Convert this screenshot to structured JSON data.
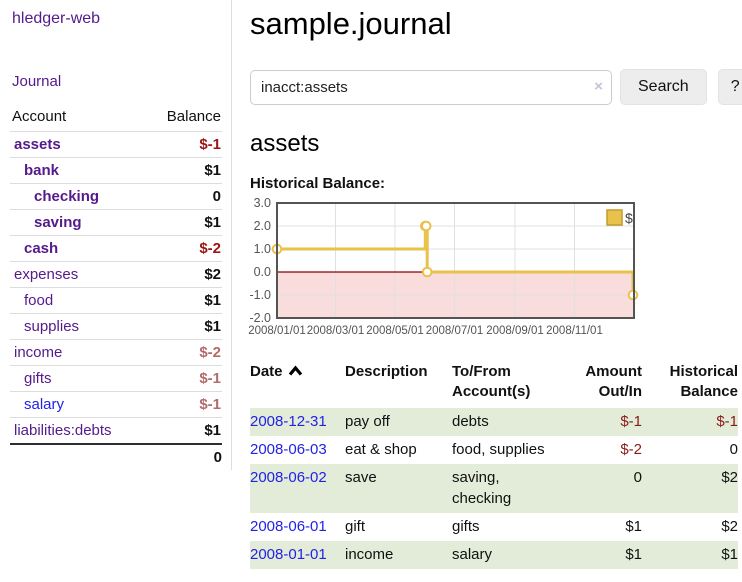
{
  "colors": {
    "accent_purple": "#551a8b",
    "link_blue": "#2222e6",
    "negative_strong": "#9d1414",
    "negative_soft": "#b36a6a",
    "negative_table": "#8b1a1a",
    "row_green": "#e3ecd9",
    "chart_line": "#e8c24a",
    "chart_negative_fill": "#f9dcdc",
    "chart_zero_line": "#8b0000"
  },
  "sidebar": {
    "app_title": "hledger-web",
    "nav_journal": "Journal",
    "accounts_table": {
      "header_account": "Account",
      "header_balance": "Balance",
      "rows": [
        {
          "name": "assets",
          "balance": "$-1",
          "indent": 0,
          "bold": true,
          "neg": "strong"
        },
        {
          "name": "bank",
          "balance": "$1",
          "indent": 1,
          "bold": true
        },
        {
          "name": "checking",
          "balance": "0",
          "indent": 2,
          "bold": true
        },
        {
          "name": "saving",
          "balance": "$1",
          "indent": 2,
          "bold": true
        },
        {
          "name": "cash",
          "balance": "$-2",
          "indent": 1,
          "bold": true,
          "neg": "strong"
        },
        {
          "name": "expenses",
          "balance": "$2",
          "indent": 0
        },
        {
          "name": "food",
          "balance": "$1",
          "indent": 1
        },
        {
          "name": "supplies",
          "balance": "$1",
          "indent": 1
        },
        {
          "name": "income",
          "balance": "$-2",
          "indent": 0,
          "neg": "soft"
        },
        {
          "name": "gifts",
          "balance": "$-1",
          "indent": 1,
          "neg": "soft"
        },
        {
          "name": "salary",
          "balance": "$-1",
          "indent": 1,
          "neg": "soft",
          "blue": true
        },
        {
          "name": "liabilities:debts",
          "balance": "$1",
          "indent": 0
        }
      ],
      "total": "0"
    }
  },
  "header": {
    "title": "sample.journal"
  },
  "search": {
    "value": "inacct:assets",
    "clear_icon": "×",
    "button_label": "Search",
    "help_label": "?"
  },
  "account_page": {
    "title": "assets",
    "chart_label": "Historical Balance:"
  },
  "chart_data": {
    "type": "line",
    "title": "Historical Balance",
    "step": true,
    "series": [
      {
        "name": "$",
        "color": "#e8c24a",
        "points": [
          [
            "2008-01-01",
            1
          ],
          [
            "2008-06-01",
            2
          ],
          [
            "2008-06-02",
            2
          ],
          [
            "2008-06-03",
            0
          ],
          [
            "2008-12-31",
            -1
          ]
        ]
      }
    ],
    "x_ticks": [
      "2008/01/01",
      "2008/03/01",
      "2008/05/01",
      "2008/07/01",
      "2008/09/01",
      "2008/11/01"
    ],
    "y_ticks": [
      3.0,
      2.0,
      1.0,
      0.0,
      -1.0,
      -2.0
    ],
    "xlim": [
      "2008-01-01",
      "2009-01-01"
    ],
    "ylim": [
      -2,
      3
    ],
    "grid": true,
    "legend_position": "top-right",
    "negative_region_color": "#f9dcdc",
    "zero_line_color": "#8b0000"
  },
  "register": {
    "headers": {
      "date": "Date",
      "description": "Description",
      "tofrom1": "To/From",
      "tofrom2": "Account(s)",
      "amount1": "Amount",
      "amount2": "Out/In",
      "hist1": "Historical",
      "hist2": "Balance"
    },
    "rows": [
      {
        "date": "2008-12-31",
        "description": "pay off",
        "accounts": "debts",
        "amount": "$-1",
        "amount_neg": true,
        "balance": "$-1",
        "balance_neg": true
      },
      {
        "date": "2008-06-03",
        "description": "eat & shop",
        "accounts": "food, supplies",
        "amount": "$-2",
        "amount_neg": true,
        "balance": "0"
      },
      {
        "date": "2008-06-02",
        "description": "save",
        "accounts": "saving,\nchecking",
        "amount": "0",
        "balance": "$2"
      },
      {
        "date": "2008-06-01",
        "description": "gift",
        "accounts": "gifts",
        "amount": "$1",
        "balance": "$2"
      },
      {
        "date": "2008-01-01",
        "description": "income",
        "accounts": "salary",
        "amount": "$1",
        "balance": "$1"
      }
    ]
  }
}
